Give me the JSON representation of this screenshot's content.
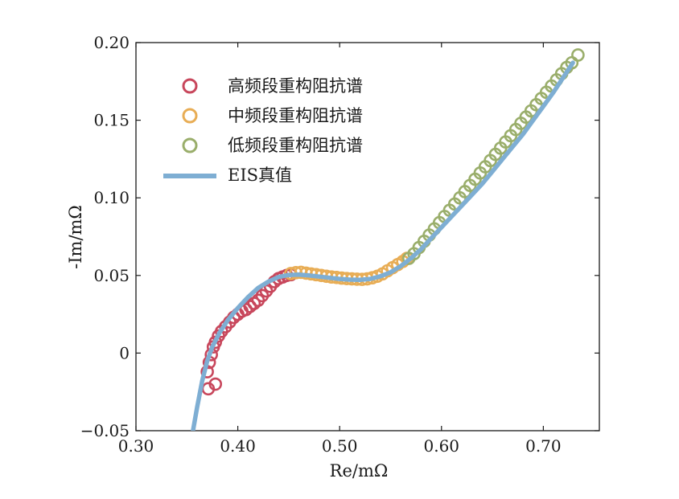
{
  "chart_data": {
    "type": "scatter",
    "xlabel": "Re/mΩ",
    "ylabel": "-Im/mΩ",
    "xlim": [
      0.3,
      0.755
    ],
    "ylim": [
      -0.05,
      0.2
    ],
    "xticks": [
      0.3,
      0.4,
      0.5,
      0.6,
      0.7
    ],
    "xtick_labels": [
      "0.30",
      "0.40",
      "0.50",
      "0.60",
      "0.70"
    ],
    "yticks": [
      -0.05,
      0,
      0.05,
      0.1,
      0.15,
      0.2
    ],
    "ytick_labels": [
      "−0.05",
      "0",
      "0.05",
      "0.10",
      "0.15",
      "0.20"
    ],
    "grid": false,
    "legend_position": "top-left",
    "series": [
      {
        "name": "高频段重构阻抗谱",
        "kind": "scatter",
        "color": "#c8475c",
        "points": [
          [
            0.371,
            -0.023
          ],
          [
            0.378,
            -0.02
          ],
          [
            0.37,
            -0.012
          ],
          [
            0.372,
            -0.006
          ],
          [
            0.374,
            -0.001
          ],
          [
            0.376,
            0.004
          ],
          [
            0.378,
            0.007
          ],
          [
            0.381,
            0.011
          ],
          [
            0.384,
            0.014
          ],
          [
            0.388,
            0.017
          ],
          [
            0.392,
            0.02
          ],
          [
            0.396,
            0.023
          ],
          [
            0.4,
            0.025
          ],
          [
            0.404,
            0.027
          ],
          [
            0.408,
            0.028
          ],
          [
            0.412,
            0.03
          ],
          [
            0.416,
            0.032
          ],
          [
            0.42,
            0.034
          ],
          [
            0.424,
            0.037
          ],
          [
            0.428,
            0.04
          ],
          [
            0.432,
            0.043
          ],
          [
            0.436,
            0.046
          ],
          [
            0.44,
            0.048
          ],
          [
            0.444,
            0.049
          ],
          [
            0.448,
            0.05
          ],
          [
            0.452,
            0.0505
          ]
        ]
      },
      {
        "name": "中频段重构阻抗谱",
        "kind": "scatter",
        "color": "#e8ad55",
        "points": [
          [
            0.452,
            0.0512
          ],
          [
            0.457,
            0.0518
          ],
          [
            0.462,
            0.052
          ],
          [
            0.467,
            0.0515
          ],
          [
            0.472,
            0.051
          ],
          [
            0.477,
            0.0505
          ],
          [
            0.482,
            0.05
          ],
          [
            0.487,
            0.0495
          ],
          [
            0.492,
            0.049
          ],
          [
            0.497,
            0.0487
          ],
          [
            0.502,
            0.0483
          ],
          [
            0.507,
            0.048
          ],
          [
            0.512,
            0.0478
          ],
          [
            0.517,
            0.0476
          ],
          [
            0.522,
            0.0475
          ],
          [
            0.527,
            0.0478
          ],
          [
            0.532,
            0.0485
          ],
          [
            0.537,
            0.0495
          ],
          [
            0.542,
            0.051
          ],
          [
            0.547,
            0.053
          ],
          [
            0.552,
            0.055
          ],
          [
            0.557,
            0.057
          ],
          [
            0.562,
            0.059
          ],
          [
            0.566,
            0.061
          ]
        ]
      },
      {
        "name": "低频段重构阻抗谱",
        "kind": "scatter",
        "color": "#9aae6b",
        "points": [
          [
            0.568,
            0.061
          ],
          [
            0.573,
            0.064
          ],
          [
            0.578,
            0.068
          ],
          [
            0.583,
            0.072
          ],
          [
            0.588,
            0.076
          ],
          [
            0.593,
            0.08
          ],
          [
            0.598,
            0.084
          ],
          [
            0.603,
            0.088
          ],
          [
            0.608,
            0.092
          ],
          [
            0.613,
            0.096
          ],
          [
            0.618,
            0.1
          ],
          [
            0.623,
            0.104
          ],
          [
            0.628,
            0.108
          ],
          [
            0.633,
            0.112
          ],
          [
            0.638,
            0.116
          ],
          [
            0.643,
            0.12
          ],
          [
            0.648,
            0.124
          ],
          [
            0.653,
            0.128
          ],
          [
            0.658,
            0.132
          ],
          [
            0.663,
            0.136
          ],
          [
            0.668,
            0.14
          ],
          [
            0.673,
            0.144
          ],
          [
            0.678,
            0.148
          ],
          [
            0.683,
            0.152
          ],
          [
            0.688,
            0.156
          ],
          [
            0.693,
            0.16
          ],
          [
            0.698,
            0.164
          ],
          [
            0.703,
            0.168
          ],
          [
            0.708,
            0.172
          ],
          [
            0.713,
            0.176
          ],
          [
            0.718,
            0.18
          ],
          [
            0.723,
            0.184
          ],
          [
            0.728,
            0.187
          ],
          [
            0.734,
            0.192
          ]
        ]
      },
      {
        "name": "EIS真值",
        "kind": "line",
        "color": "#7eaed3",
        "points": [
          [
            0.356,
            -0.05
          ],
          [
            0.36,
            -0.035
          ],
          [
            0.365,
            -0.018
          ],
          [
            0.37,
            -0.005
          ],
          [
            0.375,
            0.004
          ],
          [
            0.382,
            0.013
          ],
          [
            0.39,
            0.021
          ],
          [
            0.4,
            0.029
          ],
          [
            0.41,
            0.036
          ],
          [
            0.42,
            0.042
          ],
          [
            0.43,
            0.046
          ],
          [
            0.44,
            0.049
          ],
          [
            0.45,
            0.0503
          ],
          [
            0.46,
            0.0505
          ],
          [
            0.47,
            0.05
          ],
          [
            0.48,
            0.0493
          ],
          [
            0.49,
            0.0485
          ],
          [
            0.5,
            0.0478
          ],
          [
            0.51,
            0.0473
          ],
          [
            0.52,
            0.0472
          ],
          [
            0.53,
            0.0478
          ],
          [
            0.54,
            0.0495
          ],
          [
            0.55,
            0.052
          ],
          [
            0.56,
            0.056
          ],
          [
            0.57,
            0.061
          ],
          [
            0.58,
            0.067
          ],
          [
            0.59,
            0.074
          ],
          [
            0.6,
            0.081
          ],
          [
            0.61,
            0.088
          ],
          [
            0.62,
            0.095
          ],
          [
            0.63,
            0.102
          ],
          [
            0.64,
            0.109
          ],
          [
            0.65,
            0.117
          ],
          [
            0.66,
            0.125
          ],
          [
            0.67,
            0.133
          ],
          [
            0.68,
            0.141
          ],
          [
            0.69,
            0.15
          ],
          [
            0.7,
            0.159
          ],
          [
            0.71,
            0.168
          ],
          [
            0.72,
            0.178
          ],
          [
            0.729,
            0.187
          ]
        ]
      }
    ]
  }
}
